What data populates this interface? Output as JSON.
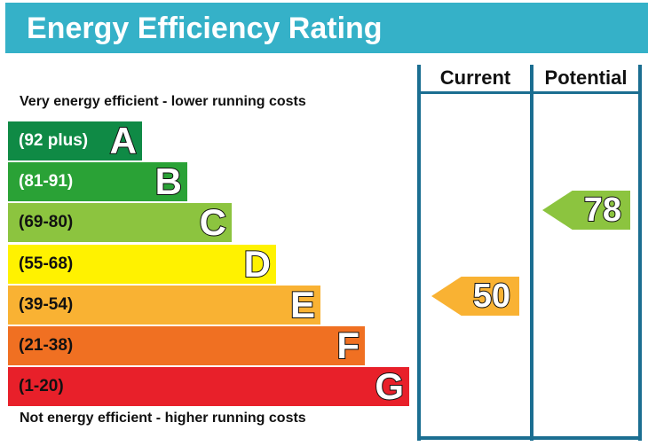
{
  "title": "Energy Efficiency Rating",
  "top_note": "Very energy efficient - lower running costs",
  "bottom_note": "Not energy efficient - higher running costs",
  "columns": {
    "current": "Current",
    "potential": "Potential"
  },
  "bands": [
    {
      "range": "(92 plus)",
      "letter": "A",
      "color": "#0f8a45",
      "text_color": "#ffffff"
    },
    {
      "range": "(81-91)",
      "letter": "B",
      "color": "#2aa236",
      "text_color": "#ffffff"
    },
    {
      "range": "(69-80)",
      "letter": "C",
      "color": "#8cc43f",
      "text_color": "#111111"
    },
    {
      "range": "(55-68)",
      "letter": "D",
      "color": "#fff200",
      "text_color": "#111111"
    },
    {
      "range": "(39-54)",
      "letter": "E",
      "color": "#f9b233",
      "text_color": "#111111"
    },
    {
      "range": "(21-38)",
      "letter": "F",
      "color": "#f07022",
      "text_color": "#111111"
    },
    {
      "range": "(1-20)",
      "letter": "G",
      "color": "#e8202a",
      "text_color": "#111111"
    }
  ],
  "ratings": {
    "current": {
      "value": "50",
      "band": "E",
      "color": "#f9b233"
    },
    "potential": {
      "value": "78",
      "band": "C",
      "color": "#8cc43f"
    }
  },
  "colors": {
    "header": "#35b1c8",
    "frame": "#1b6e91"
  }
}
